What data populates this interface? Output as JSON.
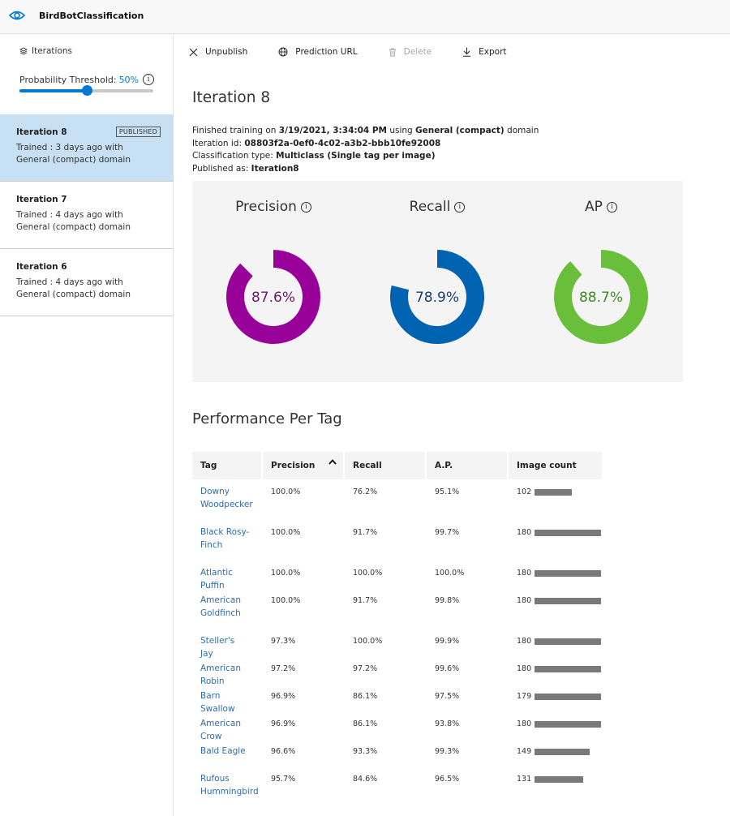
{
  "header": {
    "app_title": "BirdBotClassification",
    "icon": "eye-icon"
  },
  "sidebar": {
    "iterations_label": "Iterations",
    "threshold_label": "Probability Threshold:",
    "threshold_value": "50%",
    "threshold_level": 0.5,
    "items": [
      {
        "name": "Iteration 8",
        "badge": "PUBLISHED",
        "desc": "Trained : 3 days ago with General (compact) domain",
        "selected": true
      },
      {
        "name": "Iteration 7",
        "badge": "",
        "desc": "Trained : 4 days ago with General (compact) domain",
        "selected": false
      },
      {
        "name": "Iteration 6",
        "badge": "",
        "desc": "Trained : 4 days ago with General (compact) domain",
        "selected": false
      }
    ]
  },
  "toolbar": {
    "unpublish": "Unpublish",
    "prediction_url": "Prediction URL",
    "delete": "Delete",
    "export": "Export"
  },
  "iteration": {
    "title": "Iteration 8",
    "finished_prefix": "Finished training on ",
    "finished_date": "3/19/2021, 3:34:04 PM",
    "finished_mid": " using ",
    "domain": "General (compact)",
    "finished_suffix": " domain",
    "id_label": "Iteration id: ",
    "id_value": "08803f2a-0ef0-4c02-a3b2-bbb10fe92008",
    "class_label": "Classification type: ",
    "class_value": "Multiclass (Single tag per image)",
    "published_label": "Published as: ",
    "published_value": "Iteration8"
  },
  "metrics": [
    {
      "label": "Precision",
      "value": "87.6%",
      "fraction": 0.876,
      "color": "#990099",
      "text_color": "#6b1a6b"
    },
    {
      "label": "Recall",
      "value": "78.9%",
      "fraction": 0.789,
      "color": "#0063b1",
      "text_color": "#1a3f6b"
    },
    {
      "label": "AP",
      "value": "88.7%",
      "fraction": 0.887,
      "color": "#6abf3a",
      "text_color": "#3d8a27"
    }
  ],
  "perf": {
    "title": "Performance Per Tag",
    "columns": [
      "Tag",
      "Precision",
      "Recall",
      "A.P.",
      "Image count"
    ],
    "max_count": 180,
    "rows": [
      {
        "tag": "Downy Woodpecker",
        "precision": "100.0%",
        "recall": "76.2%",
        "ap": "95.1%",
        "count": 102
      },
      {
        "tag": "Black Rosy-Finch",
        "precision": "100.0%",
        "recall": "91.7%",
        "ap": "99.7%",
        "count": 180
      },
      {
        "tag": "Atlantic Puffin",
        "precision": "100.0%",
        "recall": "100.0%",
        "ap": "100.0%",
        "count": 180
      },
      {
        "tag": "American Goldfinch",
        "precision": "100.0%",
        "recall": "91.7%",
        "ap": "99.8%",
        "count": 180
      },
      {
        "tag": "Steller's Jay",
        "precision": "97.3%",
        "recall": "100.0%",
        "ap": "99.9%",
        "count": 180
      },
      {
        "tag": "American Robin",
        "precision": "97.2%",
        "recall": "97.2%",
        "ap": "99.6%",
        "count": 180
      },
      {
        "tag": "Barn Swallow",
        "precision": "96.9%",
        "recall": "86.1%",
        "ap": "97.5%",
        "count": 179
      },
      {
        "tag": "American Crow",
        "precision": "96.9%",
        "recall": "86.1%",
        "ap": "93.8%",
        "count": 180
      },
      {
        "tag": "Bald Eagle",
        "precision": "96.6%",
        "recall": "93.3%",
        "ap": "99.3%",
        "count": 149
      },
      {
        "tag": "Rufous Hummingbird",
        "precision": "95.7%",
        "recall": "84.6%",
        "ap": "96.5%",
        "count": 131
      }
    ]
  }
}
